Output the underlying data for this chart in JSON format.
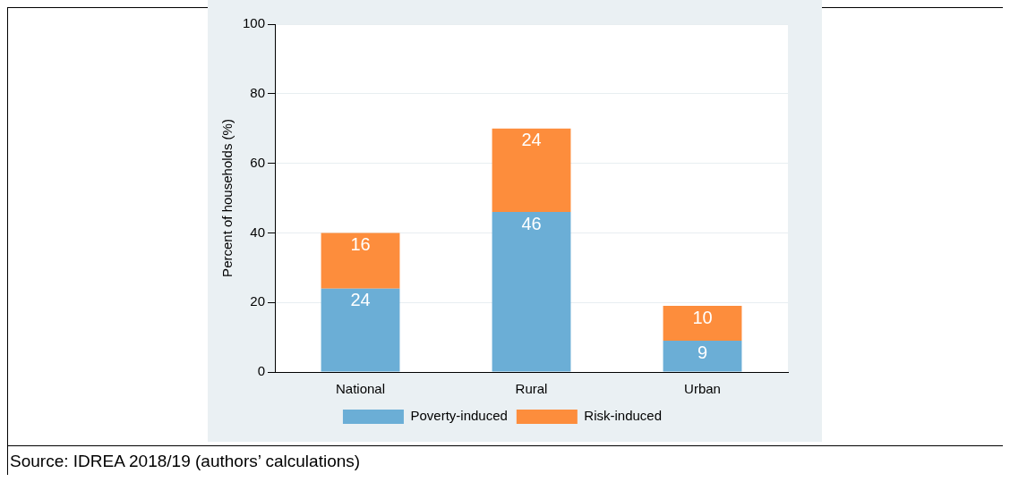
{
  "chart_data": {
    "type": "bar",
    "stacked": true,
    "ylabel": "Percent of households (%)",
    "categories": [
      "National",
      "Rural",
      "Urban"
    ],
    "series": [
      {
        "name": "Poverty-induced",
        "color": "#6baed6",
        "values": [
          24,
          46,
          9
        ]
      },
      {
        "name": "Risk-induced",
        "color": "#fd8d3c",
        "values": [
          16,
          24,
          10
        ]
      }
    ],
    "ylim": [
      0,
      100
    ],
    "yticks": [
      0,
      20,
      40,
      60,
      80,
      100
    ],
    "grid": "y",
    "legend": "bottom",
    "data_labels": true,
    "annotations": [
      "Source: IDREA 2018/19 (authors’ calculations)"
    ]
  }
}
